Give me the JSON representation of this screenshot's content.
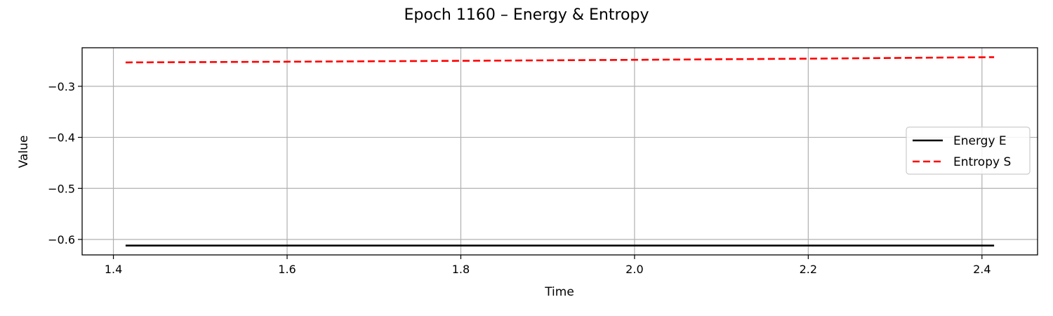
{
  "chart_data": {
    "type": "line",
    "title": "Epoch 1160 – Energy & Entropy",
    "xlabel": "Time",
    "ylabel": "Value",
    "xlim": [
      1.364,
      2.464
    ],
    "ylim": [
      -0.6303,
      -0.2245
    ],
    "xticks": [
      1.4,
      1.6,
      1.8,
      2.0,
      2.2,
      2.4
    ],
    "xtick_labels": [
      "1.4",
      "1.6",
      "1.8",
      "2.0",
      "2.2",
      "2.4"
    ],
    "yticks": [
      -0.6,
      -0.5,
      -0.4,
      -0.3
    ],
    "ytick_labels": [
      "−0.6",
      "−0.5",
      "−0.4",
      "−0.3"
    ],
    "grid": true,
    "legend_position": "center-right",
    "series": [
      {
        "name": "Energy E",
        "color": "#000000",
        "style": "solid",
        "x": [
          1.414,
          2.414
        ],
        "y": [
          -0.612,
          -0.612
        ]
      },
      {
        "name": "Entropy S",
        "color": "#ff0000",
        "style": "dashed",
        "x": [
          1.414,
          1.614,
          1.814,
          2.014,
          2.214,
          2.414
        ],
        "y": [
          -0.2532,
          -0.2517,
          -0.25,
          -0.248,
          -0.2457,
          -0.243
        ]
      }
    ]
  }
}
